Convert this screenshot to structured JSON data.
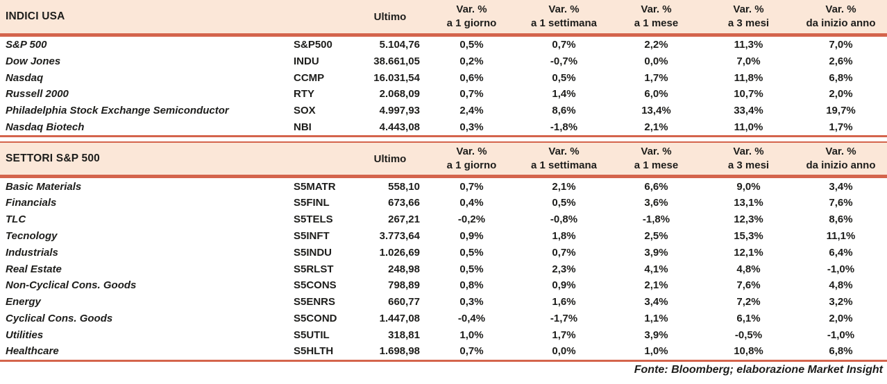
{
  "colors": {
    "header_bg": "#fbe7d8",
    "rule": "#d4644c",
    "text": "#1d1d1b"
  },
  "tables": [
    {
      "title": "INDICI USA",
      "ultimo_label": "Ultimo",
      "var_headers": [
        {
          "line1": "Var. %",
          "line2": "a 1 giorno"
        },
        {
          "line1": "Var. %",
          "line2": "a 1 settimana"
        },
        {
          "line1": "Var. %",
          "line2": "a 1 mese"
        },
        {
          "line1": "Var. %",
          "line2": "a 3 mesi"
        },
        {
          "line1": "Var. %",
          "line2": "da inizio anno"
        }
      ],
      "rows": [
        {
          "name": "S&P 500",
          "ticker": "S&P500",
          "ultimo": "5.104,76",
          "vars": [
            "0,5%",
            "0,7%",
            "2,2%",
            "11,3%",
            "7,0%"
          ]
        },
        {
          "name": "Dow Jones",
          "ticker": "INDU",
          "ultimo": "38.661,05",
          "vars": [
            "0,2%",
            "-0,7%",
            "0,0%",
            "7,0%",
            "2,6%"
          ]
        },
        {
          "name": "Nasdaq",
          "ticker": "CCMP",
          "ultimo": "16.031,54",
          "vars": [
            "0,6%",
            "0,5%",
            "1,7%",
            "11,8%",
            "6,8%"
          ]
        },
        {
          "name": "Russell 2000",
          "ticker": "RTY",
          "ultimo": "2.068,09",
          "vars": [
            "0,7%",
            "1,4%",
            "6,0%",
            "10,7%",
            "2,0%"
          ]
        },
        {
          "name": "Philadelphia Stock Exchange Semiconductor",
          "ticker": "SOX",
          "ultimo": "4.997,93",
          "vars": [
            "2,4%",
            "8,6%",
            "13,4%",
            "33,4%",
            "19,7%"
          ]
        },
        {
          "name": "Nasdaq Biotech",
          "ticker": "NBI",
          "ultimo": "4.443,08",
          "vars": [
            "0,3%",
            "-1,8%",
            "2,1%",
            "11,0%",
            "1,7%"
          ]
        }
      ]
    },
    {
      "title": "SETTORI S&P 500",
      "ultimo_label": "Ultimo",
      "var_headers": [
        {
          "line1": "Var. %",
          "line2": "a 1 giorno"
        },
        {
          "line1": "Var. %",
          "line2": "a 1 settimana"
        },
        {
          "line1": "Var. %",
          "line2": "a 1 mese"
        },
        {
          "line1": "Var. %",
          "line2": "a 3 mesi"
        },
        {
          "line1": "Var. %",
          "line2": "da inizio anno"
        }
      ],
      "rows": [
        {
          "name": "Basic Materials",
          "ticker": "S5MATR",
          "ultimo": "558,10",
          "vars": [
            "0,7%",
            "2,1%",
            "6,6%",
            "9,0%",
            "3,4%"
          ]
        },
        {
          "name": "Financials",
          "ticker": "S5FINL",
          "ultimo": "673,66",
          "vars": [
            "0,4%",
            "0,5%",
            "3,6%",
            "13,1%",
            "7,6%"
          ]
        },
        {
          "name": "TLC",
          "ticker": "S5TELS",
          "ultimo": "267,21",
          "vars": [
            "-0,2%",
            "-0,8%",
            "-1,8%",
            "12,3%",
            "8,6%"
          ]
        },
        {
          "name": "Tecnology",
          "ticker": "S5INFT",
          "ultimo": "3.773,64",
          "vars": [
            "0,9%",
            "1,8%",
            "2,5%",
            "15,3%",
            "11,1%"
          ]
        },
        {
          "name": "Industrials",
          "ticker": "S5INDU",
          "ultimo": "1.026,69",
          "vars": [
            "0,5%",
            "0,7%",
            "3,9%",
            "12,1%",
            "6,4%"
          ]
        },
        {
          "name": "Real Estate",
          "ticker": "S5RLST",
          "ultimo": "248,98",
          "vars": [
            "0,5%",
            "2,3%",
            "4,1%",
            "4,8%",
            "-1,0%"
          ]
        },
        {
          "name": "Non-Cyclical Cons. Goods",
          "ticker": "S5CONS",
          "ultimo": "798,89",
          "vars": [
            "0,8%",
            "0,9%",
            "2,1%",
            "7,6%",
            "4,8%"
          ]
        },
        {
          "name": "Energy",
          "ticker": "S5ENRS",
          "ultimo": "660,77",
          "vars": [
            "0,3%",
            "1,6%",
            "3,4%",
            "7,2%",
            "3,2%"
          ]
        },
        {
          "name": "Cyclical Cons. Goods",
          "ticker": "S5COND",
          "ultimo": "1.447,08",
          "vars": [
            "-0,4%",
            "-1,7%",
            "1,1%",
            "6,1%",
            "2,0%"
          ]
        },
        {
          "name": "Utilities",
          "ticker": "S5UTIL",
          "ultimo": "318,81",
          "vars": [
            "1,0%",
            "1,7%",
            "3,9%",
            "-0,5%",
            "-1,0%"
          ]
        },
        {
          "name": "Healthcare",
          "ticker": "S5HLTH",
          "ultimo": "1.698,98",
          "vars": [
            "0,7%",
            "0,0%",
            "1,0%",
            "10,8%",
            "6,8%"
          ]
        }
      ]
    }
  ],
  "footer": {
    "source_text": "Fonte: Bloomberg; elaborazione Market Insight"
  }
}
